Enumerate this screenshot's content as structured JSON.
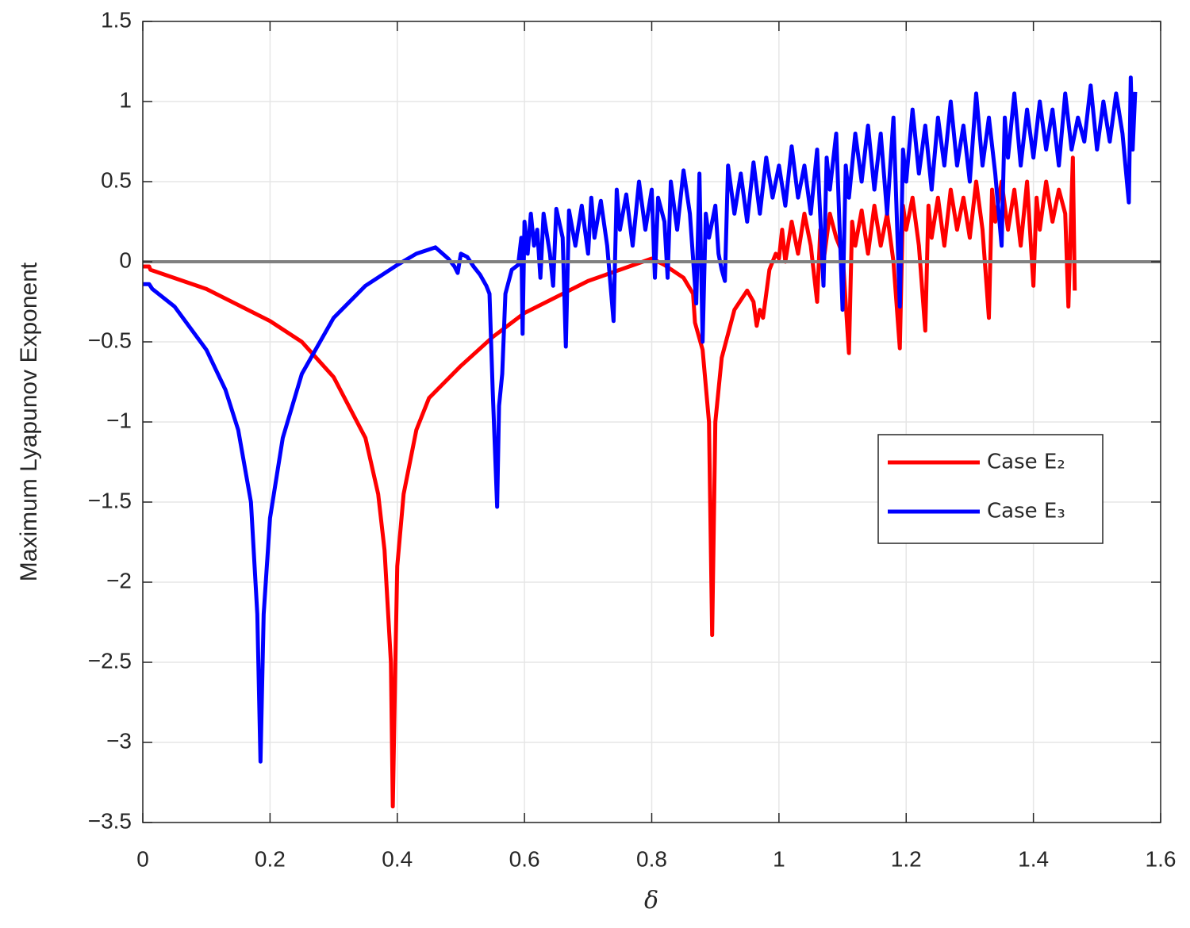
{
  "chart_data": {
    "type": "line",
    "xlabel": "δ",
    "ylabel": "Maximum Lyapunov Exponent",
    "xlim": [
      0,
      1.6
    ],
    "ylim": [
      -3.5,
      1.5
    ],
    "xticks": [
      0,
      0.2,
      0.4,
      0.6,
      0.8,
      1,
      1.2,
      1.4,
      1.6
    ],
    "yticks": [
      {
        "value": -3.5,
        "label": "−3.5"
      },
      {
        "value": -3,
        "label": "−3"
      },
      {
        "value": -2.5,
        "label": "−2.5"
      },
      {
        "value": -2,
        "label": "−2"
      },
      {
        "value": -1.5,
        "label": "−1.5"
      },
      {
        "value": -1,
        "label": "−1"
      },
      {
        "value": -0.5,
        "label": "−0.5"
      },
      0,
      0.5,
      1,
      1.5
    ],
    "grid": true,
    "legend": "right",
    "hline": 0,
    "hline_color": "#808080",
    "series": [
      {
        "name": "Case E₂",
        "color": "#ff0000",
        "x": [
          0,
          0.01,
          0.012,
          0.1,
          0.2,
          0.25,
          0.3,
          0.35,
          0.37,
          0.38,
          0.39,
          0.393,
          0.397,
          0.4,
          0.41,
          0.43,
          0.45,
          0.5,
          0.55,
          0.6,
          0.65,
          0.7,
          0.75,
          0.8,
          0.82,
          0.85,
          0.865,
          0.868,
          0.88,
          0.89,
          0.895,
          0.9,
          0.91,
          0.93,
          0.95,
          0.96,
          0.965,
          0.97,
          0.975,
          0.98,
          0.985,
          0.995,
          1,
          1.005,
          1.01,
          1.02,
          1.03,
          1.04,
          1.05,
          1.06,
          1.065,
          1.07,
          1.08,
          1.09,
          1.1,
          1.11,
          1.115,
          1.12,
          1.13,
          1.14,
          1.15,
          1.16,
          1.17,
          1.18,
          1.19,
          1.195,
          1.2,
          1.21,
          1.22,
          1.23,
          1.235,
          1.24,
          1.25,
          1.26,
          1.27,
          1.28,
          1.29,
          1.3,
          1.31,
          1.32,
          1.33,
          1.335,
          1.34,
          1.35,
          1.36,
          1.37,
          1.38,
          1.39,
          1.4,
          1.405,
          1.41,
          1.42,
          1.43,
          1.44,
          1.45,
          1.455,
          1.46,
          1.462,
          1.465
        ],
        "values": [
          -0.03,
          -0.03,
          -0.05,
          -0.17,
          -0.37,
          -0.5,
          -0.72,
          -1.1,
          -1.45,
          -1.8,
          -2.5,
          -3.4,
          -2.5,
          -1.9,
          -1.45,
          -1.05,
          -0.85,
          -0.65,
          -0.47,
          -0.32,
          -0.22,
          -0.12,
          -0.05,
          0.02,
          -0.02,
          -0.1,
          -0.2,
          -0.38,
          -0.55,
          -1.0,
          -2.33,
          -1.0,
          -0.6,
          -0.3,
          -0.18,
          -0.25,
          -0.4,
          -0.3,
          -0.35,
          -0.2,
          -0.05,
          0.05,
          0.02,
          0.2,
          0.0,
          0.25,
          0.05,
          0.3,
          0.1,
          -0.25,
          0.2,
          0.0,
          0.3,
          0.15,
          0.05,
          -0.57,
          0.25,
          0.1,
          0.32,
          0.05,
          0.35,
          0.1,
          0.3,
          0.0,
          -0.54,
          0.35,
          0.2,
          0.4,
          0.1,
          -0.43,
          0.35,
          0.15,
          0.4,
          0.1,
          0.45,
          0.2,
          0.4,
          0.15,
          0.5,
          0.2,
          -0.35,
          0.45,
          0.25,
          0.5,
          0.2,
          0.45,
          0.1,
          0.5,
          -0.15,
          0.4,
          0.2,
          0.5,
          0.25,
          0.45,
          0.3,
          -0.28,
          0.4,
          0.65,
          -0.18
        ]
      },
      {
        "name": "Case E₃",
        "color": "#0000ff",
        "x": [
          0,
          0.01,
          0.015,
          0.05,
          0.1,
          0.13,
          0.15,
          0.17,
          0.18,
          0.185,
          0.19,
          0.2,
          0.22,
          0.25,
          0.3,
          0.35,
          0.4,
          0.43,
          0.46,
          0.48,
          0.49,
          0.495,
          0.5,
          0.51,
          0.52,
          0.53,
          0.54,
          0.545,
          0.55,
          0.557,
          0.56,
          0.565,
          0.57,
          0.58,
          0.59,
          0.595,
          0.597,
          0.6,
          0.605,
          0.61,
          0.615,
          0.62,
          0.625,
          0.63,
          0.64,
          0.645,
          0.65,
          0.66,
          0.665,
          0.67,
          0.68,
          0.69,
          0.7,
          0.705,
          0.71,
          0.72,
          0.73,
          0.74,
          0.745,
          0.75,
          0.76,
          0.77,
          0.78,
          0.79,
          0.8,
          0.805,
          0.81,
          0.82,
          0.825,
          0.83,
          0.84,
          0.85,
          0.86,
          0.87,
          0.875,
          0.88,
          0.885,
          0.89,
          0.9,
          0.905,
          0.91,
          0.915,
          0.92,
          0.93,
          0.94,
          0.95,
          0.96,
          0.97,
          0.98,
          0.99,
          1,
          1.01,
          1.02,
          1.03,
          1.04,
          1.05,
          1.06,
          1.07,
          1.075,
          1.08,
          1.09,
          1.1,
          1.105,
          1.11,
          1.12,
          1.13,
          1.14,
          1.15,
          1.16,
          1.17,
          1.18,
          1.19,
          1.195,
          1.2,
          1.21,
          1.22,
          1.23,
          1.24,
          1.25,
          1.26,
          1.27,
          1.28,
          1.29,
          1.3,
          1.31,
          1.32,
          1.33,
          1.34,
          1.35,
          1.355,
          1.36,
          1.37,
          1.38,
          1.39,
          1.4,
          1.41,
          1.42,
          1.43,
          1.44,
          1.45,
          1.46,
          1.47,
          1.48,
          1.49,
          1.5,
          1.51,
          1.52,
          1.53,
          1.54,
          1.55,
          1.553,
          1.556,
          1.56
        ],
        "values": [
          -0.14,
          -0.14,
          -0.17,
          -0.28,
          -0.55,
          -0.8,
          -1.05,
          -1.5,
          -2.2,
          -3.12,
          -2.2,
          -1.6,
          -1.1,
          -0.7,
          -0.35,
          -0.15,
          -0.02,
          0.05,
          0.09,
          0.02,
          -0.03,
          -0.07,
          0.05,
          0.03,
          -0.03,
          -0.08,
          -0.15,
          -0.2,
          -0.8,
          -1.53,
          -0.9,
          -0.7,
          -0.2,
          -0.05,
          -0.02,
          0.15,
          -0.45,
          0.25,
          0.05,
          0.3,
          0.1,
          0.2,
          -0.1,
          0.3,
          0.05,
          -0.15,
          0.33,
          0.15,
          -0.53,
          0.32,
          0.1,
          0.35,
          0.05,
          0.4,
          0.15,
          0.38,
          0.1,
          -0.37,
          0.45,
          0.2,
          0.42,
          0.1,
          0.5,
          0.2,
          0.45,
          -0.1,
          0.4,
          0.25,
          -0.1,
          0.5,
          0.2,
          0.57,
          0.3,
          -0.26,
          0.55,
          -0.5,
          0.3,
          0.15,
          0.35,
          0.05,
          -0.05,
          -0.12,
          0.6,
          0.3,
          0.55,
          0.25,
          0.62,
          0.3,
          0.65,
          0.4,
          0.6,
          0.35,
          0.72,
          0.4,
          0.6,
          0.3,
          0.7,
          -0.15,
          0.65,
          0.45,
          0.8,
          -0.3,
          0.6,
          0.4,
          0.8,
          0.5,
          0.85,
          0.45,
          0.8,
          0.3,
          0.9,
          -0.28,
          0.7,
          0.5,
          0.95,
          0.55,
          0.85,
          0.45,
          0.9,
          0.6,
          1.0,
          0.6,
          0.85,
          0.5,
          1.05,
          0.6,
          0.9,
          0.55,
          0.1,
          0.9,
          0.65,
          1.05,
          0.6,
          0.95,
          0.65,
          1.0,
          0.7,
          0.95,
          0.6,
          1.05,
          0.7,
          0.9,
          0.75,
          1.1,
          0.7,
          1.0,
          0.75,
          1.05,
          0.8,
          0.37,
          1.15,
          0.7,
          1.06
        ]
      }
    ]
  }
}
